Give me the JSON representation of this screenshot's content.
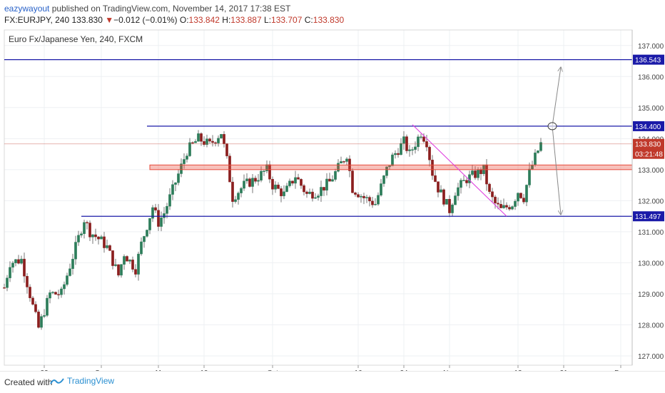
{
  "header": {
    "author": "eazywayout",
    "published_text": "published on TradingView.com, November 14, 2017 17:38 EST",
    "symbol": "FX:EURJPY, 240",
    "last": "133.830",
    "change_arrow": "▼",
    "change": "−0.012 (−0.01%)",
    "open_label": "O:",
    "open": "133.842",
    "high_label": "H:",
    "high": "133.887",
    "low_label": "L:",
    "low": "133.707",
    "close_label": "C:",
    "close": "133.830"
  },
  "chart_data": {
    "type": "candlestick",
    "title": "Euro Fx/Japanese Yen, 240, FXCM",
    "ylim": [
      126.7,
      137.5
    ],
    "y_ticks": [
      127,
      128,
      129,
      130,
      131,
      132,
      133,
      134,
      135,
      136,
      137
    ],
    "y_tick_labels": [
      "127.000",
      "128.000",
      "129.000",
      "130.000",
      "131.000",
      "132.000",
      "133.000",
      "134.000",
      "135.000",
      "136.000",
      "137.000"
    ],
    "x_ticks": [
      {
        "label": "22",
        "day": 22
      },
      {
        "label": "Sep",
        "day": 32
      },
      {
        "label": "11",
        "day": 42
      },
      {
        "label": "19",
        "day": 50
      },
      {
        "label": "Oct",
        "day": 62
      },
      {
        "label": "16",
        "day": 77
      },
      {
        "label": "24",
        "day": 85
      },
      {
        "label": "Nov",
        "day": 93
      },
      {
        "label": "13",
        "day": 105
      },
      {
        "label": "21",
        "day": 113
      },
      {
        "label": "Dec",
        "day": 123
      }
    ],
    "xlim": [
      15,
      125
    ],
    "price_path": [
      [
        15,
        129.2
      ],
      [
        16,
        130.0
      ],
      [
        18,
        130.1
      ],
      [
        20,
        128.6
      ],
      [
        21,
        127.9
      ],
      [
        23,
        129.0
      ],
      [
        25,
        129.0
      ],
      [
        27,
        130.2
      ],
      [
        29,
        131.4
      ],
      [
        30,
        131.0
      ],
      [
        32,
        130.7
      ],
      [
        33,
        130.5
      ],
      [
        35,
        129.6
      ],
      [
        36,
        130.3
      ],
      [
        38,
        129.8
      ],
      [
        39,
        130.6
      ],
      [
        41,
        131.8
      ],
      [
        42,
        131.3
      ],
      [
        43,
        131.6
      ],
      [
        45,
        132.6
      ],
      [
        47,
        133.6
      ],
      [
        49,
        134.0
      ],
      [
        51,
        133.8
      ],
      [
        53,
        134.2
      ],
      [
        54,
        133.3
      ],
      [
        55,
        132.1
      ],
      [
        57,
        132.5
      ],
      [
        59,
        132.7
      ],
      [
        61,
        133.0
      ],
      [
        62,
        132.5
      ],
      [
        64,
        132.2
      ],
      [
        66,
        132.8
      ],
      [
        68,
        132.2
      ],
      [
        70,
        132.3
      ],
      [
        72,
        132.6
      ],
      [
        74,
        133.2
      ],
      [
        75,
        133.5
      ],
      [
        76,
        132.4
      ],
      [
        78,
        132.1
      ],
      [
        80,
        131.9
      ],
      [
        82,
        133.0
      ],
      [
        83,
        133.4
      ],
      [
        85,
        133.9
      ],
      [
        86,
        133.5
      ],
      [
        88,
        134.2
      ],
      [
        89,
        133.9
      ],
      [
        90,
        132.9
      ],
      [
        91,
        132.4
      ],
      [
        93,
        131.7
      ],
      [
        94,
        132.3
      ],
      [
        96,
        132.7
      ],
      [
        98,
        132.9
      ],
      [
        99,
        133.0
      ],
      [
        100,
        132.2
      ],
      [
        101,
        131.9
      ],
      [
        102,
        131.7
      ],
      [
        104,
        131.9
      ],
      [
        105,
        132.3
      ],
      [
        106,
        132.1
      ],
      [
        107,
        132.9
      ],
      [
        108,
        133.4
      ],
      [
        109,
        133.83
      ]
    ],
    "horizontal_levels": [
      {
        "value": 136.543,
        "label": "136.543",
        "color": "#1a1aa8"
      },
      {
        "value": 134.4,
        "label": "134.400",
        "color": "#1a1aa8"
      },
      {
        "value": 131.497,
        "label": "131.497",
        "color": "#1a1aa8"
      }
    ],
    "resistance_zone": {
      "from": 133.0,
      "to": 133.15,
      "color": "#e74c3c"
    },
    "last_price": {
      "value": 133.83,
      "label": "133.830",
      "countdown": "03:21:48",
      "color": "#c0392b"
    },
    "trendline": {
      "from": [
        86.5,
        134.45
      ],
      "to": [
        103,
        131.5
      ],
      "color": "#e040e0"
    },
    "projection": {
      "origin": [
        111,
        134.4
      ],
      "up_to": [
        112.5,
        136.3
      ],
      "down_to": [
        112.5,
        131.55
      ],
      "color": "#888888"
    }
  },
  "footer": {
    "created_with": "Created with",
    "brand": "TradingView"
  }
}
